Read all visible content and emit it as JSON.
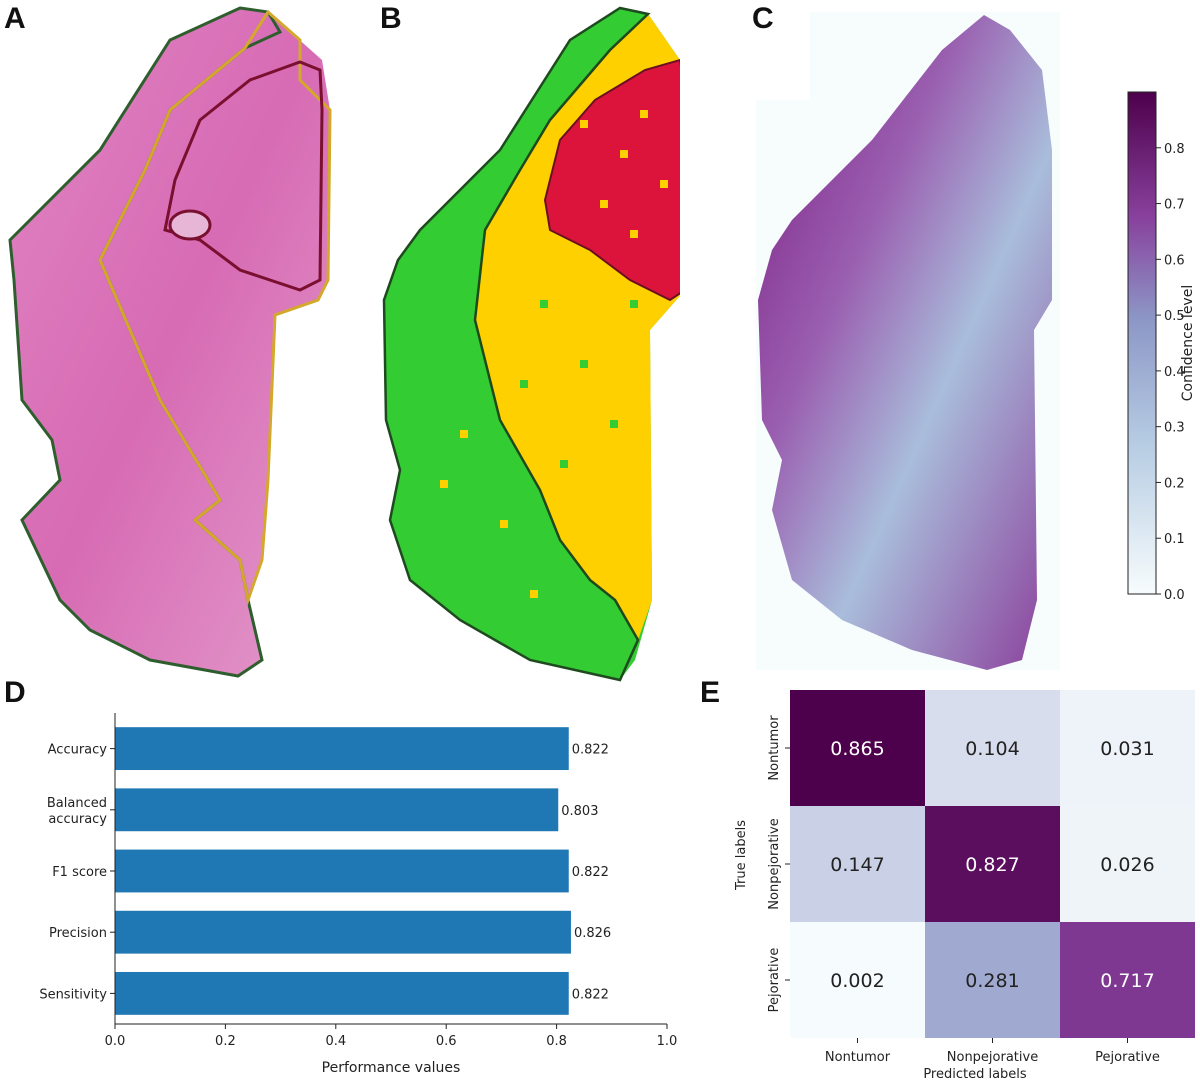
{
  "panels": {
    "a": "A",
    "b": "B",
    "c": "C",
    "d": "D",
    "e": "E"
  },
  "colors": {
    "tissue_pink": "#d96bb3",
    "nontumor_outline": "#2e5e2e",
    "nonpejorative_outline": "#d4a82a",
    "pejorative_outline": "#7a1030",
    "green": "#33cc33",
    "yellow": "#ffd000",
    "red": "#dc143c",
    "bar": "#1f77b4",
    "cmap_low": "#f7fcfd",
    "cmap_mid": "#8c96c6",
    "cmap_high": "#4d004b"
  },
  "colorbar": {
    "label": "Confidence level",
    "ticks": [
      "0.0",
      "0.1",
      "0.2",
      "0.3",
      "0.4",
      "0.5",
      "0.6",
      "0.7",
      "0.8"
    ]
  },
  "chart_data": [
    {
      "type": "bar",
      "orientation": "horizontal",
      "categories": [
        "Accuracy",
        "Balanced accuracy",
        "F1 score",
        "Precision",
        "Sensitivity"
      ],
      "category_lines": [
        [
          "Accuracy"
        ],
        [
          "Balanced",
          "accuracy"
        ],
        [
          "F1 score"
        ],
        [
          "Precision"
        ],
        [
          "Sensitivity"
        ]
      ],
      "values": [
        0.822,
        0.803,
        0.822,
        0.826,
        0.822
      ],
      "value_labels": [
        "0.822",
        "0.803",
        "0.822",
        "0.826",
        "0.822"
      ],
      "xlabel": "Performance values",
      "xlim": [
        0.0,
        1.0
      ],
      "xticks": [
        "0.0",
        "0.2",
        "0.4",
        "0.6",
        "0.8",
        "1.0"
      ]
    },
    {
      "type": "heatmap",
      "rows": [
        "Nontumor",
        "Nonpejorative",
        "Pejorative"
      ],
      "columns": [
        "Nontumor",
        "Nonpejorative",
        "Pejorative"
      ],
      "values": [
        [
          0.865,
          0.104,
          0.031
        ],
        [
          0.147,
          0.827,
          0.026
        ],
        [
          0.002,
          0.281,
          0.717
        ]
      ],
      "value_labels": [
        [
          "0.865",
          "0.104",
          "0.031"
        ],
        [
          "0.147",
          "0.827",
          "0.026"
        ],
        [
          "0.002",
          "0.281",
          "0.717"
        ]
      ],
      "xlabel": "Predicted labels",
      "ylabel": "True labels"
    }
  ]
}
